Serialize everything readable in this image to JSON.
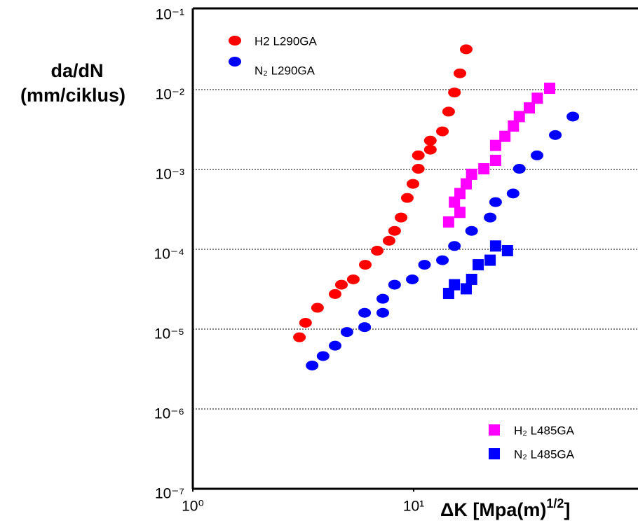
{
  "chart_data": {
    "type": "scatter",
    "ylabel": [
      "da/dN",
      "(mm/ciklus)"
    ],
    "xlabel": {
      "text": "ΔK [Mpa(m)",
      "sup": "1/2",
      "end": "]"
    },
    "log_x": true,
    "log_y": true,
    "grid": true,
    "xlim": [
      1,
      100
    ],
    "ylim": [
      1e-07,
      0.1
    ],
    "xticks": [
      {
        "value": 1,
        "label": "10⁰"
      },
      {
        "value": 10,
        "label": "10¹"
      }
    ],
    "yticks": [
      {
        "value": 0.1,
        "label": "10⁻¹"
      },
      {
        "value": 0.01,
        "label": "10⁻²"
      },
      {
        "value": 0.001,
        "label": "10⁻³"
      },
      {
        "value": 0.0001,
        "label": "10⁻⁴"
      },
      {
        "value": 1e-05,
        "label": "10⁻⁵"
      },
      {
        "value": 1e-06,
        "label": "10⁻⁶"
      },
      {
        "value": 1e-07,
        "label": "10⁻⁷"
      }
    ],
    "series": [
      {
        "name": "H2  L290GA",
        "color": "#ff0000",
        "marker": "circle",
        "x": [
          3.04,
          3.24,
          3.67,
          4.41,
          4.71,
          5.33,
          6.04,
          6.84,
          7.74,
          8.2,
          8.77,
          9.36,
          9.93,
          10.5,
          10.5,
          11.9,
          11.9,
          13.5,
          14.4,
          15.3,
          16.2,
          17.3
        ],
        "values": [
          7.9e-06,
          1.2e-05,
          1.85e-05,
          2.75e-05,
          3.6e-05,
          4.2e-05,
          6.4e-05,
          9.6e-05,
          0.000128,
          0.00017,
          0.00025,
          0.00044,
          0.00066,
          0.00102,
          0.0015,
          0.00177,
          0.0023,
          0.003,
          0.0053,
          0.0092,
          0.016,
          0.032
        ]
      },
      {
        "name": "N₂ L290GA",
        "color": "#0000ff",
        "marker": "circle",
        "x": [
          3.47,
          3.89,
          4.41,
          4.99,
          6.0,
          6.0,
          7.25,
          7.25,
          8.2,
          9.86,
          11.2,
          13.5,
          15.3,
          18.3,
          22.2,
          23.5,
          28.2,
          30.1,
          36.2,
          43.8,
          52.6
        ],
        "values": [
          3.5e-06,
          4.6e-06,
          6.2e-06,
          9.2e-06,
          1.06e-05,
          1.6e-05,
          1.6e-05,
          2.4e-05,
          3.6e-05,
          4.2e-05,
          6.4e-05,
          7.3e-05,
          0.00011,
          0.00017,
          0.00025,
          0.00039,
          0.0005,
          0.00102,
          0.0015,
          0.0027,
          0.0046
        ]
      },
      {
        "name": "H₂ L485GA",
        "color": "#ff00ff",
        "marker": "square",
        "x": [
          14.4,
          16.2,
          15.3,
          16.2,
          17.3,
          18.3,
          20.8,
          23.5,
          23.5,
          25.9,
          28.3,
          30.1,
          33.4,
          36.3,
          41.3
        ],
        "values": [
          0.00022,
          0.00029,
          0.00039,
          0.0005,
          0.00066,
          0.00087,
          0.00102,
          0.0013,
          0.002,
          0.0026,
          0.0035,
          0.0046,
          0.0059,
          0.0078,
          0.0104
        ]
      },
      {
        "name": "N₂ L485GA",
        "color": "#0000ff",
        "marker": "square",
        "x": [
          14.4,
          15.3,
          17.3,
          18.3,
          19.6,
          22.2,
          23.5,
          26.6
        ],
        "values": [
          2.8e-05,
          3.6e-05,
          3.2e-05,
          4.2e-05,
          6.4e-05,
          7.3e-05,
          0.00011,
          9.6e-05
        ]
      }
    ]
  }
}
